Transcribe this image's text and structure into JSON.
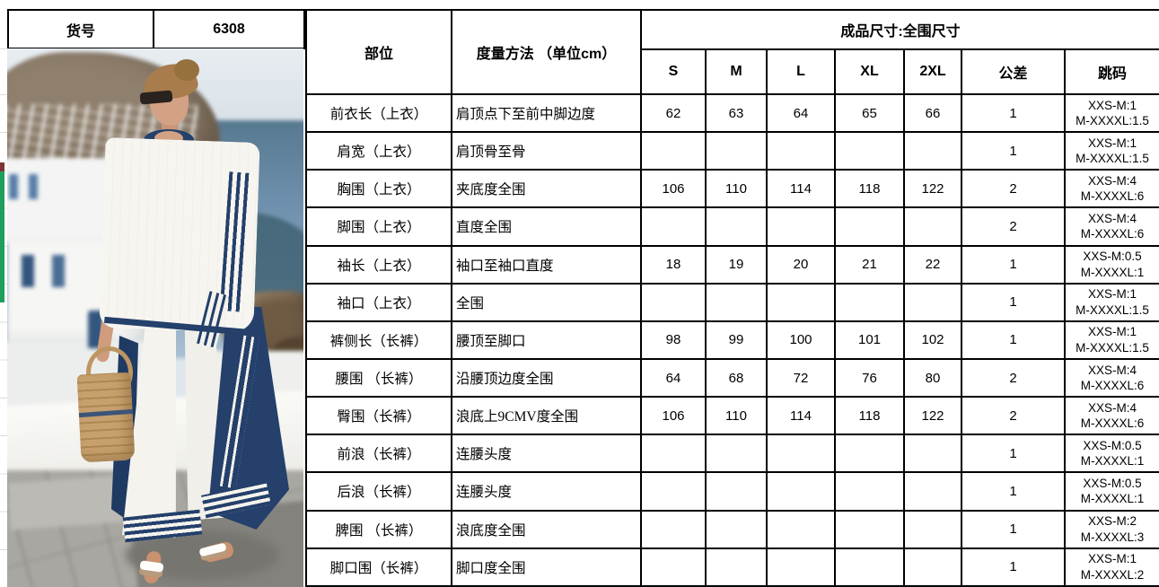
{
  "item": {
    "label": "货号",
    "value": "6308"
  },
  "table": {
    "part_header": "部位",
    "method_header": "度量方法 （单位cm）",
    "size_header": "成品尺寸:全围尺寸",
    "size_columns": [
      "S",
      "M",
      "L",
      "XL",
      "2XL"
    ],
    "tolerance_header": "公差",
    "grading_header": "跳码",
    "rows": [
      {
        "part": "前衣长（上衣）",
        "method": "肩顶点下至前中脚边度",
        "sizes": [
          "62",
          "63",
          "64",
          "65",
          "66"
        ],
        "tolerance": "1",
        "grading": [
          "XXS-M:1",
          "M-XXXXL:1.5"
        ]
      },
      {
        "part": "肩宽（上衣）",
        "method": "肩顶骨至骨",
        "sizes": [
          "",
          "",
          "",
          "",
          ""
        ],
        "tolerance": "1",
        "grading": [
          "XXS-M:1",
          "M-XXXXL:1.5"
        ]
      },
      {
        "part": "胸围（上衣）",
        "method": "夹底度全围",
        "sizes": [
          "106",
          "110",
          "114",
          "118",
          "122"
        ],
        "tolerance": "2",
        "grading": [
          "XXS-M:4",
          "M-XXXXL:6"
        ]
      },
      {
        "part": "脚围（上衣）",
        "method": "直度全围",
        "sizes": [
          "",
          "",
          "",
          "",
          ""
        ],
        "tolerance": "2",
        "grading": [
          "XXS-M:4",
          "M-XXXXL:6"
        ]
      },
      {
        "part": "袖长（上衣）",
        "method": "袖口至袖口直度",
        "sizes": [
          "18",
          "19",
          "20",
          "21",
          "22"
        ],
        "tolerance": "1",
        "grading": [
          "XXS-M:0.5",
          "M-XXXXL:1"
        ]
      },
      {
        "part": "袖口（上衣）",
        "method": "全围",
        "sizes": [
          "",
          "",
          "",
          "",
          ""
        ],
        "tolerance": "1",
        "grading": [
          "XXS-M:1",
          "M-XXXXL:1.5"
        ]
      },
      {
        "part": "裤侧长（长裤）",
        "method": "腰顶至脚口",
        "sizes": [
          "98",
          "99",
          "100",
          "101",
          "102"
        ],
        "tolerance": "1",
        "grading": [
          "XXS-M:1",
          "M-XXXXL:1.5"
        ]
      },
      {
        "part": "腰围 （长裤）",
        "method": "沿腰顶边度全围",
        "sizes": [
          "64",
          "68",
          "72",
          "76",
          "80"
        ],
        "tolerance": "2",
        "grading": [
          "XXS-M:4",
          "M-XXXXL:6"
        ]
      },
      {
        "part": "臀围（长裤）",
        "method": "浪底上9CMV度全围",
        "sizes": [
          "106",
          "110",
          "114",
          "118",
          "122"
        ],
        "tolerance": "2",
        "grading": [
          "XXS-M:4",
          "M-XXXXL:6"
        ]
      },
      {
        "part": "前浪（长裤）",
        "method": "连腰头度",
        "sizes": [
          "",
          "",
          "",
          "",
          ""
        ],
        "tolerance": "1",
        "grading": [
          "XXS-M:0.5",
          "M-XXXXL:1"
        ]
      },
      {
        "part": "后浪（长裤）",
        "method": "连腰头度",
        "sizes": [
          "",
          "",
          "",
          "",
          ""
        ],
        "tolerance": "1",
        "grading": [
          "XXS-M:0.5",
          "M-XXXXL:1"
        ]
      },
      {
        "part": "脾围 （长裤）",
        "method": "浪底度全围",
        "sizes": [
          "",
          "",
          "",
          "",
          ""
        ],
        "tolerance": "1",
        "grading": [
          "XXS-M:2",
          "M-XXXXL:3"
        ]
      },
      {
        "part": "脚口围（长裤）",
        "method": "脚口度全围",
        "sizes": [
          "",
          "",
          "",
          "",
          ""
        ],
        "tolerance": "1",
        "grading": [
          "XXS-M:1",
          "M-XXXXL:2"
        ]
      }
    ]
  },
  "photo": {
    "alt": "Model wearing white short-sleeve top and wide-leg pants with navy striped trim, carrying a straw tote, walking past whitewashed seaside village buildings and blue sea",
    "palette": {
      "navy_trim": "#24406b",
      "garment_white": "#f7f5f0",
      "sea_blue": "#6e90ad",
      "straw_bag": "#c7a06e",
      "pavement_grey": "#a9a7a2",
      "marker_green": "#1f9e5c"
    }
  }
}
